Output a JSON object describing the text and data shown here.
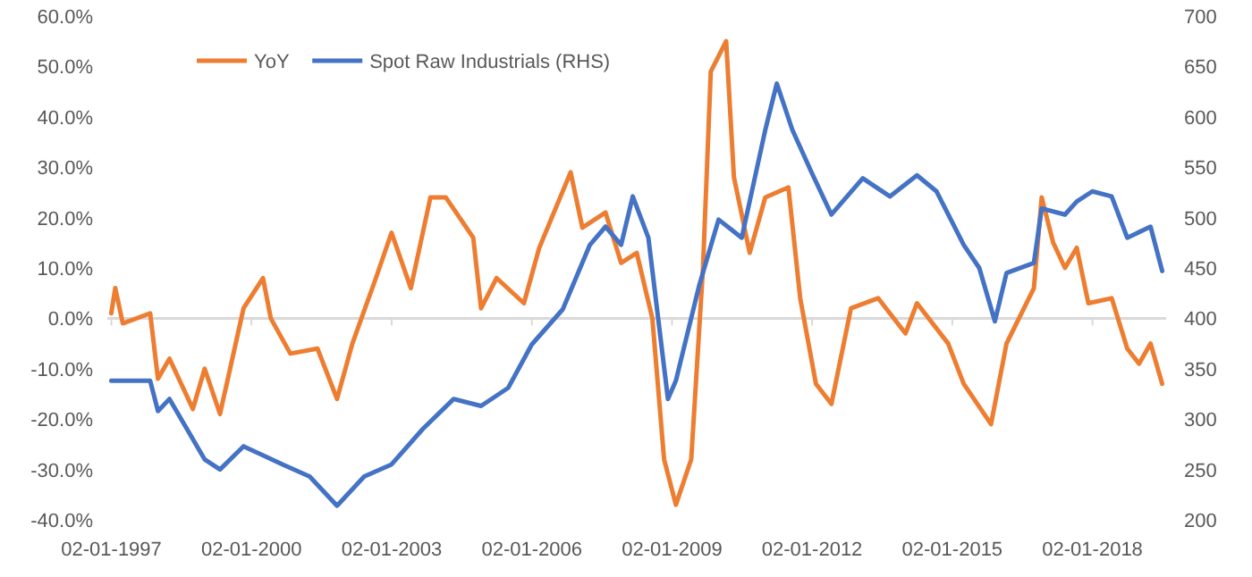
{
  "chart_data": {
    "type": "line",
    "legend": "top left",
    "xlim": [
      "1996-12",
      "2019-08"
    ],
    "xticks": [
      {
        "value": "1997-01-02",
        "label": "02-01-1997"
      },
      {
        "value": "2000-01-02",
        "label": "02-01-2000"
      },
      {
        "value": "2003-01-02",
        "label": "02-01-2003"
      },
      {
        "value": "2006-01-02",
        "label": "02-01-2006"
      },
      {
        "value": "2009-01-02",
        "label": "02-01-2009"
      },
      {
        "value": "2012-01-02",
        "label": "02-01-2012"
      },
      {
        "value": "2015-01-02",
        "label": "02-01-2015"
      },
      {
        "value": "2018-01-02",
        "label": "02-01-2018"
      }
    ],
    "ylim": [
      -0.4,
      0.6
    ],
    "yticks": [
      {
        "value": -0.4,
        "label": "-40.0%"
      },
      {
        "value": -0.3,
        "label": "-30.0%"
      },
      {
        "value": -0.2,
        "label": "-20.0%"
      },
      {
        "value": -0.1,
        "label": "-10.0%"
      },
      {
        "value": 0,
        "label": "0.0%"
      },
      {
        "value": 0.1,
        "label": "10.0%"
      },
      {
        "value": 0.2,
        "label": "20.0%"
      },
      {
        "value": 0.3,
        "label": "30.0%"
      },
      {
        "value": 0.4,
        "label": "40.0%"
      },
      {
        "value": 0.5,
        "label": "50.0%"
      },
      {
        "value": 0.6,
        "label": "60.0%"
      }
    ],
    "y2lim": [
      200,
      700
    ],
    "y2ticks": [
      200,
      250,
      300,
      350,
      400,
      450,
      500,
      550,
      600,
      650,
      700
    ],
    "series": [
      {
        "name": "YoY",
        "color": "#ed7d31",
        "x": [
          "1997-01",
          "1997-02",
          "1997-04",
          "1997-11",
          "1998-01",
          "1998-04",
          "1998-10",
          "1999-01",
          "1999-05",
          "1999-11",
          "2000-04",
          "2000-06",
          "2000-11",
          "2001-06",
          "2001-11",
          "2002-03",
          "2002-09",
          "2003-01",
          "2003-06",
          "2003-11",
          "2004-03",
          "2004-10",
          "2004-12",
          "2005-04",
          "2005-11",
          "2006-03",
          "2006-11",
          "2007-02",
          "2007-08",
          "2007-12",
          "2008-04",
          "2008-08",
          "2008-11",
          "2009-02",
          "2009-06",
          "2009-09",
          "2009-11",
          "2010-03",
          "2010-05",
          "2010-09",
          "2011-01",
          "2011-07",
          "2011-10",
          "2012-02",
          "2012-06",
          "2012-11",
          "2013-06",
          "2014-01",
          "2014-04",
          "2014-12",
          "2015-04",
          "2015-11",
          "2016-03",
          "2016-10",
          "2016-12",
          "2017-03",
          "2017-06",
          "2017-09",
          "2017-12",
          "2018-06",
          "2018-10",
          "2019-01",
          "2019-04",
          "2019-07"
        ],
        "values": [
          0.01,
          0.06,
          -0.01,
          0.01,
          -0.12,
          -0.08,
          -0.18,
          -0.1,
          -0.19,
          0.02,
          0.08,
          0,
          -0.07,
          -0.06,
          -0.16,
          -0.05,
          0.08,
          0.17,
          0.06,
          0.24,
          0.24,
          0.16,
          0.02,
          0.08,
          0.03,
          0.14,
          0.29,
          0.18,
          0.21,
          0.11,
          0.13,
          0,
          -0.28,
          -0.37,
          -0.28,
          0.1,
          0.49,
          0.55,
          0.28,
          0.13,
          0.24,
          0.26,
          0.04,
          -0.13,
          -0.17,
          0.02,
          0.04,
          -0.03,
          0.03,
          -0.05,
          -0.13,
          -0.21,
          -0.05,
          0.06,
          0.24,
          0.15,
          0.1,
          0.14,
          0.03,
          0.04,
          -0.06,
          -0.09,
          -0.05,
          -0.13
        ]
      },
      {
        "name": "Spot Raw Industrials (RHS)",
        "color": "#4472c4",
        "axis": "y2",
        "x": [
          "1997-01",
          "1997-11",
          "1998-01",
          "1998-04",
          "1999-01",
          "1999-05",
          "1999-11",
          "2000-09",
          "2001-04",
          "2001-11",
          "2002-06",
          "2003-01",
          "2003-09",
          "2004-05",
          "2004-12",
          "2005-07",
          "2006-01",
          "2006-09",
          "2007-04",
          "2007-08",
          "2007-12",
          "2008-03",
          "2008-07",
          "2008-12",
          "2009-02",
          "2009-08",
          "2010-01",
          "2010-07",
          "2011-01",
          "2011-04",
          "2011-08",
          "2012-01",
          "2012-06",
          "2013-02",
          "2013-09",
          "2014-04",
          "2014-09",
          "2015-04",
          "2015-08",
          "2015-12",
          "2016-03",
          "2016-10",
          "2016-12",
          "2017-06",
          "2017-09",
          "2018-01",
          "2018-06",
          "2018-10",
          "2019-04",
          "2019-07"
        ],
        "values": [
          338,
          338,
          308,
          320,
          260,
          250,
          273,
          255,
          243,
          214,
          243,
          255,
          290,
          320,
          313,
          331,
          374,
          409,
          473,
          491,
          473,
          521,
          480,
          320,
          338,
          432,
          498,
          480,
          587,
          633,
          587,
          544,
          503,
          539,
          521,
          542,
          526,
          473,
          450,
          397,
          445,
          455,
          509,
          503,
          516,
          526,
          521,
          480,
          491,
          447
        ]
      }
    ]
  }
}
